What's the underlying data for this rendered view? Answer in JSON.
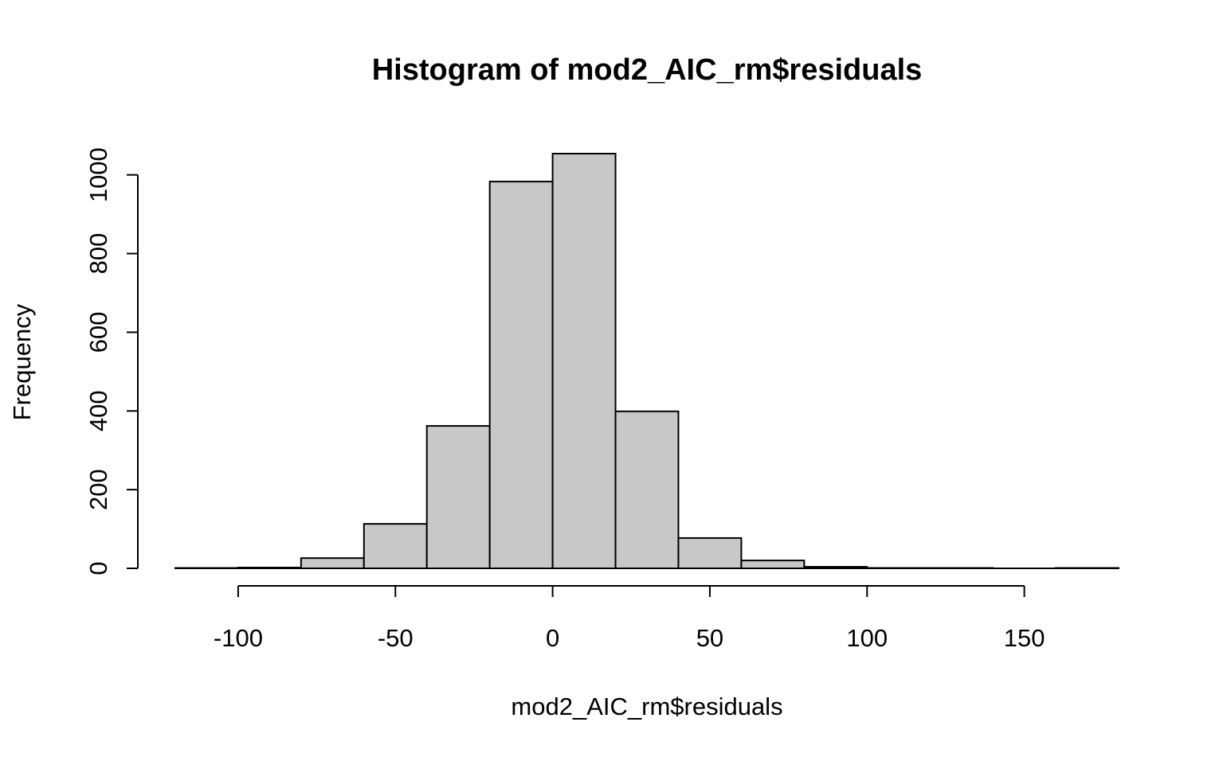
{
  "chart_data": {
    "type": "bar",
    "title": "Histogram of mod2_AIC_rm$residuals",
    "xlabel": "mod2_AIC_rm$residuals",
    "ylabel": "Frequency",
    "bins": [
      {
        "start": -120,
        "end": -100,
        "count": 1
      },
      {
        "start": -100,
        "end": -80,
        "count": 2
      },
      {
        "start": -80,
        "end": -60,
        "count": 26
      },
      {
        "start": -60,
        "end": -40,
        "count": 113
      },
      {
        "start": -40,
        "end": -20,
        "count": 362
      },
      {
        "start": -20,
        "end": 0,
        "count": 983
      },
      {
        "start": 0,
        "end": 20,
        "count": 1054
      },
      {
        "start": 20,
        "end": 40,
        "count": 399
      },
      {
        "start": 40,
        "end": 60,
        "count": 77
      },
      {
        "start": 60,
        "end": 80,
        "count": 20
      },
      {
        "start": 80,
        "end": 100,
        "count": 4
      },
      {
        "start": 100,
        "end": 120,
        "count": 1
      },
      {
        "start": 120,
        "end": 140,
        "count": 1
      },
      {
        "start": 140,
        "end": 160,
        "count": 0
      },
      {
        "start": 160,
        "end": 180,
        "count": 1
      }
    ],
    "xlim": [
      -120,
      180
    ],
    "ylim": [
      0,
      1054
    ],
    "x_ticks": [
      -100,
      -50,
      0,
      50,
      100,
      150
    ],
    "y_ticks": [
      0,
      200,
      400,
      600,
      800,
      1000
    ],
    "bar_color": "#c8c8c8",
    "grid": false
  }
}
